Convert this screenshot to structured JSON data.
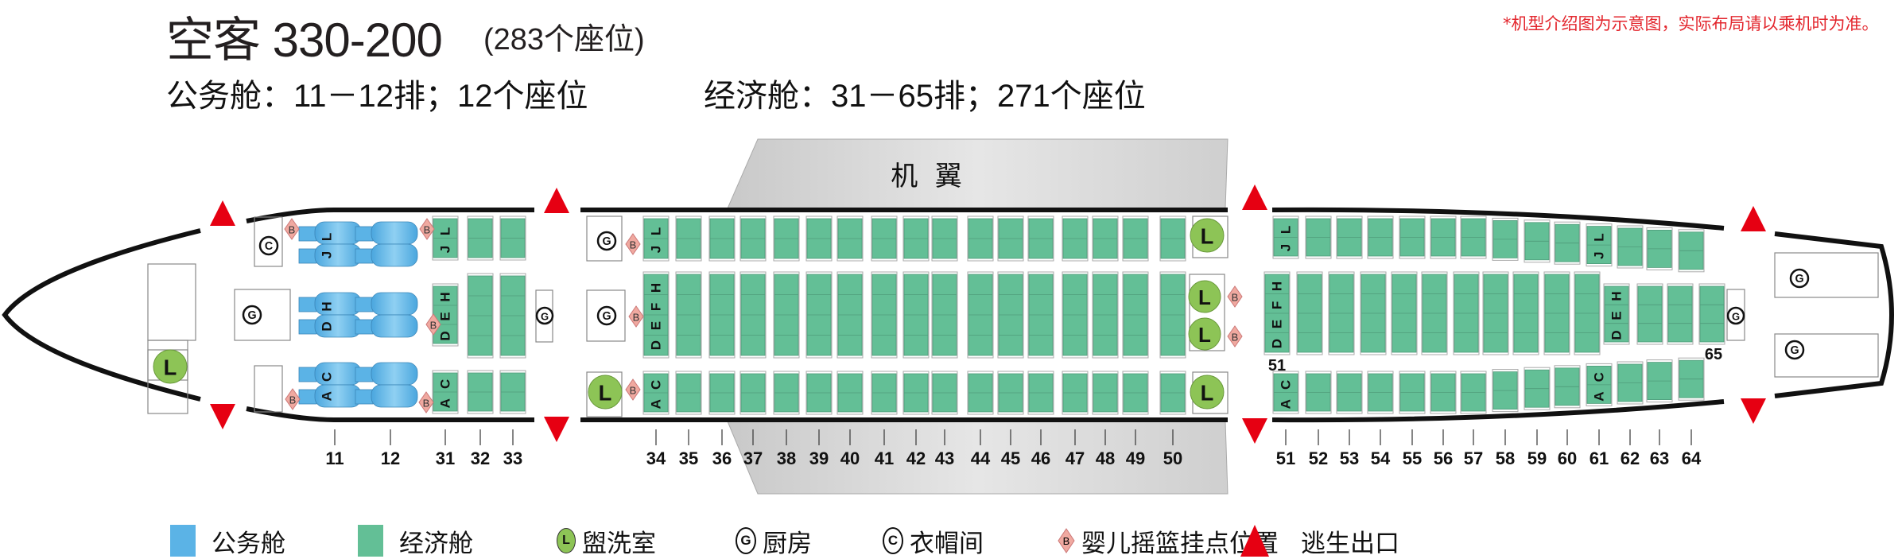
{
  "header": {
    "title": "空客 330-200",
    "seat_total": "(283个座位)",
    "cabins": [
      {
        "name": "business",
        "text": "公务舱：11－12排；12个座位"
      },
      {
        "name": "economy",
        "text": "经济舱：31－65排；271个座位"
      }
    ],
    "note": "*机型介绍图为示意图，实际布局请以乘机时为准。"
  },
  "wing_label": "机  翼",
  "colors": {
    "business": "#5bb3e6",
    "economy": "#63bf96",
    "lavatory": "#8dc456",
    "bassinet": "#f0a9a0",
    "exit": "#e60012",
    "fuselage": "#111111",
    "wing": "#d4d4d4"
  },
  "icons": {
    "lavatory": "L",
    "galley": "G",
    "closet": "C",
    "bassinet": "B"
  },
  "business_rows": [
    {
      "row": "11",
      "letters": {
        "top": "J L",
        "mid": "D H",
        "bot": "A C"
      }
    },
    {
      "row": "12",
      "letters": {}
    }
  ],
  "economy_forward_rows": [
    {
      "row": "31",
      "letters": {
        "top": "J L",
        "mid": "D E H",
        "bot": "A C"
      }
    },
    {
      "row": "32",
      "letters": {}
    },
    {
      "row": "33",
      "letters": {}
    }
  ],
  "economy_mid_rows": [
    {
      "row": "34",
      "letters": {
        "top": "J L",
        "mid": "D E F H",
        "bot": "A C"
      }
    },
    {
      "row": "35"
    },
    {
      "row": "36"
    },
    {
      "row": "37"
    },
    {
      "row": "38"
    },
    {
      "row": "39"
    },
    {
      "row": "40"
    },
    {
      "row": "41"
    },
    {
      "row": "42"
    },
    {
      "row": "43"
    },
    {
      "row": "44"
    },
    {
      "row": "45"
    },
    {
      "row": "46"
    },
    {
      "row": "47"
    },
    {
      "row": "48"
    },
    {
      "row": "49"
    },
    {
      "row": "50"
    }
  ],
  "economy_aft_rows": [
    {
      "row": "51",
      "letters": {
        "top": "J L",
        "bot": "A C"
      }
    },
    {
      "row": "52"
    },
    {
      "row": "53"
    },
    {
      "row": "54"
    },
    {
      "row": "55"
    },
    {
      "row": "56"
    },
    {
      "row": "57"
    },
    {
      "row": "58"
    },
    {
      "row": "59"
    },
    {
      "row": "60"
    },
    {
      "row": "61",
      "letters": {
        "top": "J L",
        "bot": "A C"
      }
    },
    {
      "row": "62"
    },
    {
      "row": "63"
    },
    {
      "row": "64"
    }
  ],
  "economy_aft_center_columns": [
    {
      "letters": "D E F H"
    },
    {},
    {},
    {},
    {},
    {},
    {},
    {},
    {},
    {},
    {},
    {
      "letters": "D E H"
    },
    {},
    {},
    {}
  ],
  "row_markers": {
    "first_aft_center": "51",
    "last_aft_center": "65"
  },
  "legend": [
    {
      "key": "business",
      "label": "公务舱"
    },
    {
      "key": "economy",
      "label": "经济舱"
    },
    {
      "key": "lavatory",
      "label": "盥洗室"
    },
    {
      "key": "galley",
      "label": "厨房"
    },
    {
      "key": "closet",
      "label": "衣帽间"
    },
    {
      "key": "bassinet",
      "label": "婴儿摇篮挂点位置"
    },
    {
      "key": "exit",
      "label": "逃生出口"
    }
  ]
}
